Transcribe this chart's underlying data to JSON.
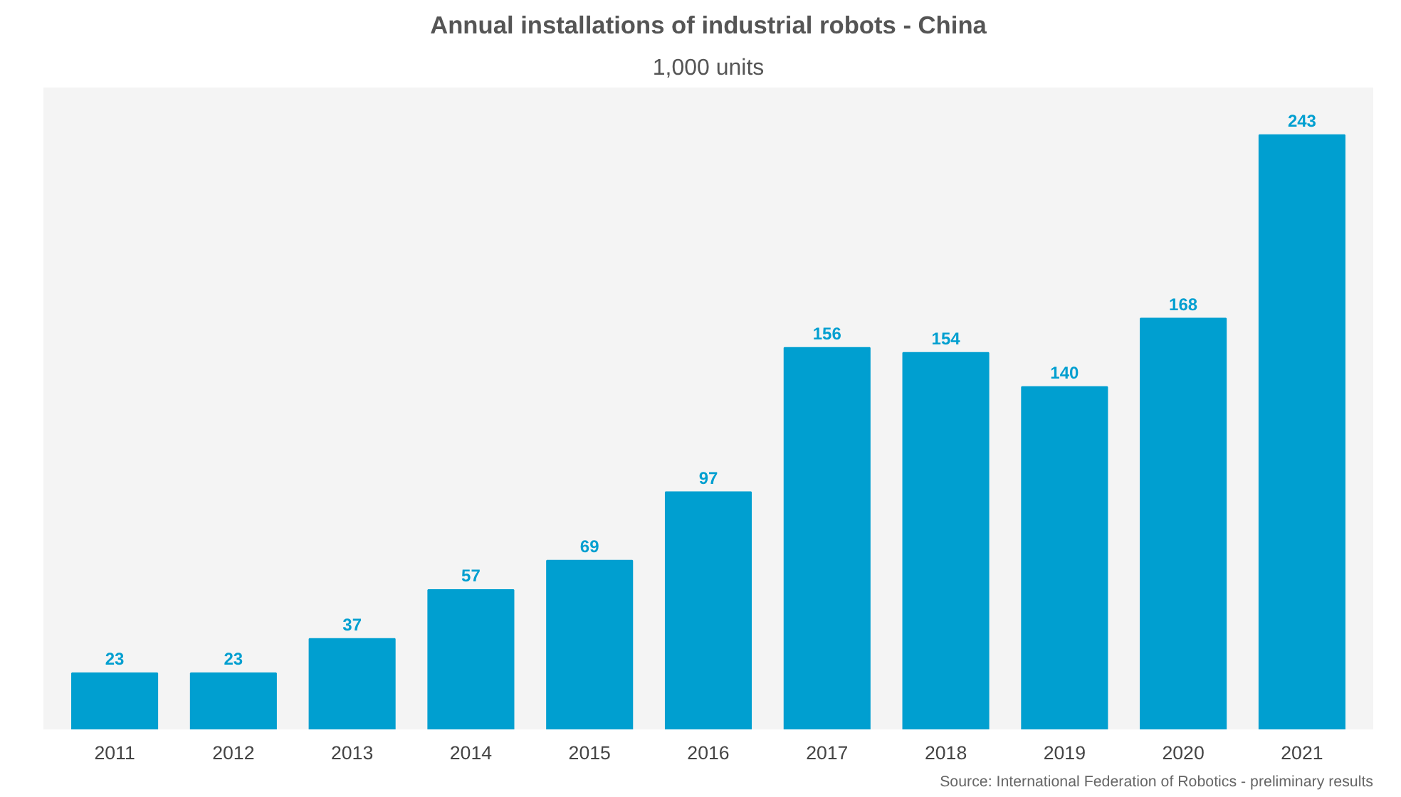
{
  "chart_data": {
    "type": "bar",
    "title": "Annual installations of industrial robots - China",
    "subtitle": "1,000 units",
    "categories": [
      "2011",
      "2012",
      "2013",
      "2014",
      "2015",
      "2016",
      "2017",
      "2018",
      "2019",
      "2020",
      "2021"
    ],
    "values": [
      23,
      23,
      37,
      57,
      69,
      97,
      156,
      154,
      140,
      168,
      243
    ],
    "color": "#009fd0",
    "data_labels": true,
    "grid": false,
    "annotations": [
      "Source: International Federation of Robotics - preliminary results"
    ]
  }
}
